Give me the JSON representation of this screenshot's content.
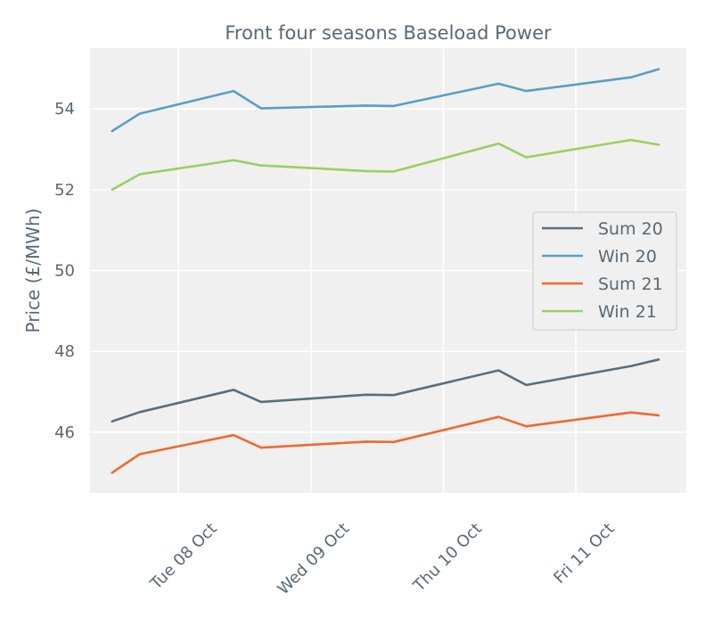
{
  "chart_data": {
    "type": "line",
    "title": "Front four seasons Baseload Power",
    "xlabel": "",
    "ylabel": "Price (£/MWh)",
    "x": [
      "2019-10-07 12:00",
      "2019-10-07 17:00",
      "2019-10-08 10:00",
      "2019-10-08 15:00",
      "2019-10-09 10:00",
      "2019-10-09 15:00",
      "2019-10-10 10:00",
      "2019-10-10 15:00",
      "2019-10-11 10:00",
      "2019-10-11 15:00"
    ],
    "xlim": [
      "2019-10-07 08:00",
      "2019-10-11 20:00"
    ],
    "xticks": [
      {
        "value": "2019-10-08 00:00",
        "label": "Tue 08 Oct"
      },
      {
        "value": "2019-10-09 00:00",
        "label": "Wed 09 Oct"
      },
      {
        "value": "2019-10-10 00:00",
        "label": "Thu 10 Oct"
      },
      {
        "value": "2019-10-11 00:00",
        "label": "Fri 11 Oct"
      }
    ],
    "ylim": [
      44.5,
      55.5
    ],
    "yticks": [
      46,
      48,
      50,
      52,
      54
    ],
    "grid": true,
    "legend_position": "center-right",
    "series": [
      {
        "name": "Sum 20",
        "color": "#5b6e7c",
        "values": [
          46.27,
          46.5,
          47.05,
          46.75,
          46.93,
          46.92,
          47.53,
          47.17,
          47.64,
          47.8
        ]
      },
      {
        "name": "Win 20",
        "color": "#5a9ec5",
        "values": [
          53.45,
          53.88,
          54.44,
          54.01,
          54.08,
          54.07,
          54.62,
          54.44,
          54.78,
          54.98
        ]
      },
      {
        "name": "Sum 21",
        "color": "#ee6a2b",
        "values": [
          45.0,
          45.46,
          45.93,
          45.62,
          45.77,
          45.76,
          46.38,
          46.15,
          46.49,
          46.42
        ]
      },
      {
        "name": "Win 21",
        "color": "#9bcf62",
        "values": [
          52.0,
          52.38,
          52.73,
          52.6,
          52.46,
          52.45,
          53.14,
          52.8,
          53.23,
          53.11
        ]
      }
    ]
  }
}
